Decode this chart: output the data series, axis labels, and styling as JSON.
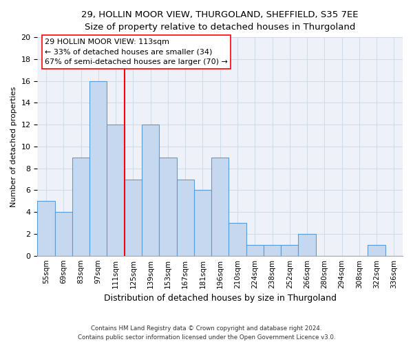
{
  "title_line1": "29, HOLLIN MOOR VIEW, THURGOLAND, SHEFFIELD, S35 7EE",
  "title_line2": "Size of property relative to detached houses in Thurgoland",
  "xlabel": "Distribution of detached houses by size in Thurgoland",
  "ylabel": "Number of detached properties",
  "footnote1": "Contains HM Land Registry data © Crown copyright and database right 2024.",
  "footnote2": "Contains public sector information licensed under the Open Government Licence v3.0.",
  "bin_labels": [
    "55sqm",
    "69sqm",
    "83sqm",
    "97sqm",
    "111sqm",
    "125sqm",
    "139sqm",
    "153sqm",
    "167sqm",
    "181sqm",
    "196sqm",
    "210sqm",
    "224sqm",
    "238sqm",
    "252sqm",
    "266sqm",
    "280sqm",
    "294sqm",
    "308sqm",
    "322sqm",
    "336sqm"
  ],
  "bar_heights": [
    5,
    4,
    9,
    16,
    12,
    7,
    12,
    9,
    7,
    6,
    9,
    3,
    1,
    1,
    1,
    2,
    0,
    0,
    0,
    1,
    0
  ],
  "bar_color": "#c5d8f0",
  "bar_edge_color": "#5b9bd5",
  "vline_color": "red",
  "vline_x_index": 4,
  "annotation_title": "29 HOLLIN MOOR VIEW: 113sqm",
  "annotation_line1": "← 33% of detached houses are smaller (34)",
  "annotation_line2": "67% of semi-detached houses are larger (70) →",
  "annotation_box_color": "white",
  "annotation_box_edge": "red",
  "ylim": [
    0,
    20
  ],
  "yticks": [
    0,
    2,
    4,
    6,
    8,
    10,
    12,
    14,
    16,
    18,
    20
  ],
  "grid_color": "#d0dde8",
  "background_color": "#eef2f8"
}
